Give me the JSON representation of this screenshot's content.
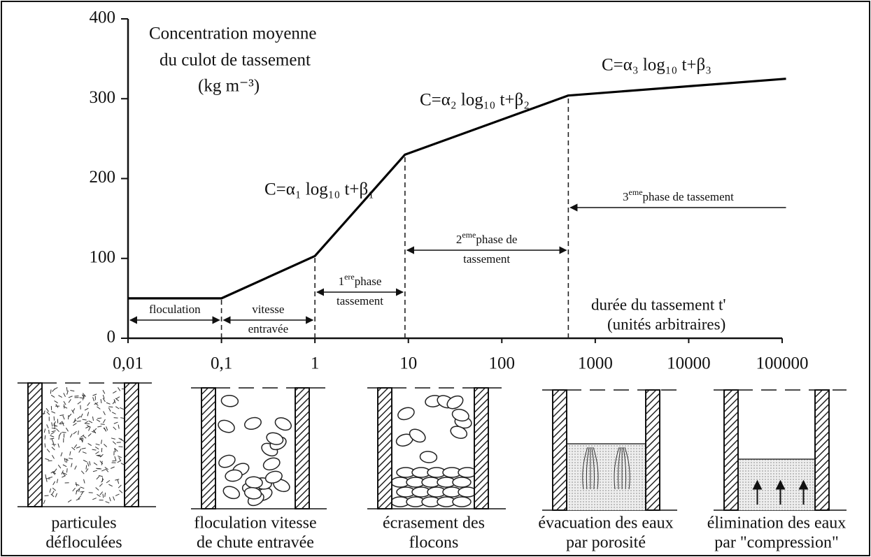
{
  "chart_data": {
    "type": "line",
    "title": [
      "Concentration moyenne",
      "du culot de tassement",
      "(kg m⁻³)"
    ],
    "x": [
      0.01,
      0.1,
      1,
      9.2,
      515,
      110000
    ],
    "values": [
      50,
      50,
      103,
      230,
      304,
      325
    ],
    "color": "#000000",
    "xscale": "log",
    "xlim": [
      0.01,
      100000
    ],
    "ylim": [
      0,
      400
    ],
    "xticks": [
      {
        "value": 0.01,
        "label": "0,01"
      },
      {
        "value": 0.1,
        "label": "0,1"
      },
      1,
      10,
      100,
      1000,
      10000,
      100000
    ],
    "yticks": [
      0,
      100,
      200,
      300,
      400
    ],
    "xlabel": [
      "durée du tassement      t'",
      "(unités arbitraires)"
    ],
    "equations": [
      "C=α₁ log₁₀ t+β₁",
      "C=α₂ log₁₀ t+β₂",
      "C=α₃ log₁₀ t+β₃"
    ],
    "phases": [
      {
        "label": [
          "floculation"
        ]
      },
      {
        "label": [
          "vitesse",
          "entravée"
        ]
      },
      {
        "number": "1",
        "sup": "ere",
        "label": [
          "phase",
          "tassement"
        ]
      },
      {
        "number": "2",
        "sup": "eme",
        "label": [
          "phase de",
          "tassement"
        ]
      },
      {
        "number": "3",
        "sup": "eme",
        "label": [
          "phase de tassement"
        ]
      }
    ]
  },
  "panels": [
    {
      "caption": [
        "particules",
        "défloculées"
      ]
    },
    {
      "caption": [
        "floculation vitesse",
        "de chute entravée"
      ]
    },
    {
      "caption": [
        "écrasement des",
        "flocons"
      ]
    },
    {
      "caption": [
        "évacuation des eaux",
        "par porosité"
      ]
    },
    {
      "caption": [
        "élimination des eaux",
        "par \"compression\""
      ]
    }
  ]
}
